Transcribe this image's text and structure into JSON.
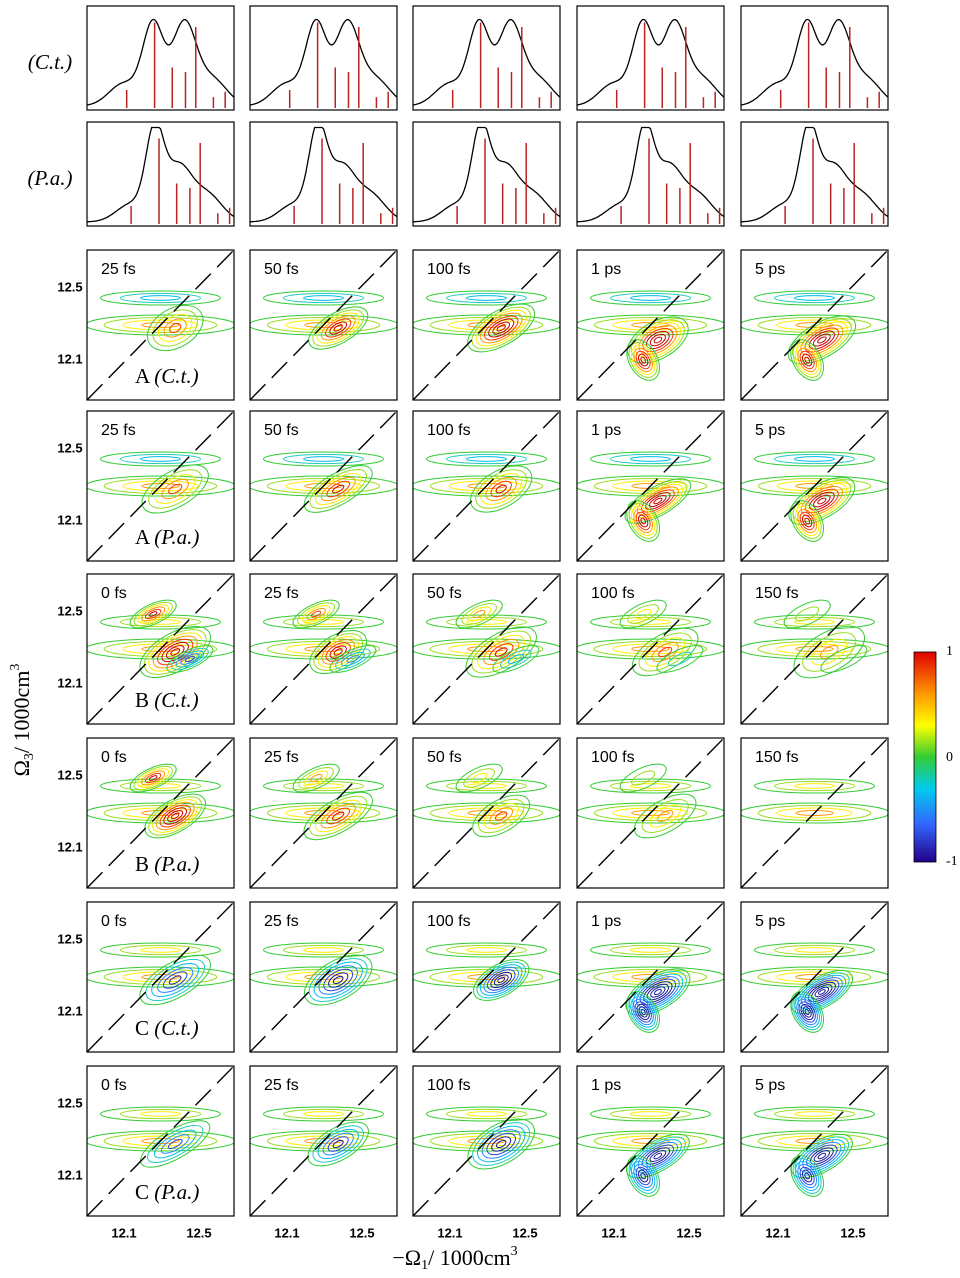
{
  "spectra_rows": [
    {
      "label": "(C.t.)"
    },
    {
      "label": "(P.a.)"
    }
  ],
  "rows": [
    {
      "letter": "A",
      "sample": "(C.t.)",
      "times": [
        "25 fs",
        "50 fs",
        "100 fs",
        "1 ps",
        "5 ps"
      ]
    },
    {
      "letter": "A",
      "sample": "(P.a.)",
      "times": [
        "25 fs",
        "50 fs",
        "100 fs",
        "1 ps",
        "5 ps"
      ]
    },
    {
      "letter": "B",
      "sample": "(C.t.)",
      "times": [
        "0 fs",
        "25 fs",
        "50 fs",
        "100 fs",
        "150 fs"
      ]
    },
    {
      "letter": "B",
      "sample": "(P.a.)",
      "times": [
        "0 fs",
        "25 fs",
        "50 fs",
        "100 fs",
        "150 fs"
      ]
    },
    {
      "letter": "C",
      "sample": "(C.t.)",
      "times": [
        "0 fs",
        "25 fs",
        "100 fs",
        "1 ps",
        "5 ps"
      ]
    },
    {
      "letter": "C",
      "sample": "(P.a.)",
      "times": [
        "0 fs",
        "25 fs",
        "100 fs",
        "1 ps",
        "5 ps"
      ]
    }
  ],
  "y_axis": {
    "symbol": "Ω",
    "subscript": "3",
    "unit": "/ 1000cm",
    "superscript": "3",
    "ticks": [
      "12.5",
      "12.1"
    ]
  },
  "x_axis": {
    "symbol": "−Ω",
    "subscript": "1",
    "unit": "/ 1000cm",
    "superscript": "3",
    "ticks": [
      "12.1",
      "12.5"
    ]
  },
  "colorbar": {
    "ticks": [
      "1",
      "0",
      "-1"
    ]
  }
}
